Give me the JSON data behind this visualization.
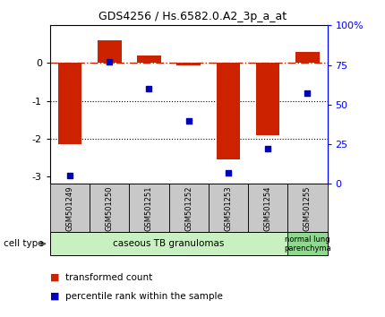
{
  "title": "GDS4256 / Hs.6582.0.A2_3p_a_at",
  "samples": [
    "GSM501249",
    "GSM501250",
    "GSM501251",
    "GSM501252",
    "GSM501253",
    "GSM501254",
    "GSM501255"
  ],
  "transformed_count": [
    -2.15,
    0.6,
    0.2,
    -0.05,
    -2.55,
    -1.9,
    0.3
  ],
  "percentile_rank": [
    5,
    77,
    60,
    40,
    7,
    22,
    57
  ],
  "ylim_left": [
    -3.2,
    1.0
  ],
  "ylim_right": [
    0,
    100
  ],
  "yticks_left": [
    -3,
    -2,
    -1,
    0
  ],
  "yticks_right": [
    0,
    25,
    50,
    75,
    100
  ],
  "yticklabels_right": [
    "0",
    "25",
    "50",
    "75",
    "100%"
  ],
  "bar_color": "#cc2200",
  "dot_color": "#0000bb",
  "dotted_lines": [
    -1,
    -2
  ],
  "group1_label": "caseous TB granulomas",
  "group2_label": "normal lung\nparenchyma",
  "cell_type_label": "cell type",
  "legend_bar_label": "transformed count",
  "legend_dot_label": "percentile rank within the sample",
  "group1_color": "#c8f0c0",
  "group2_color": "#90d890",
  "sample_box_color": "#c8c8c8",
  "spine_color": "#000000"
}
